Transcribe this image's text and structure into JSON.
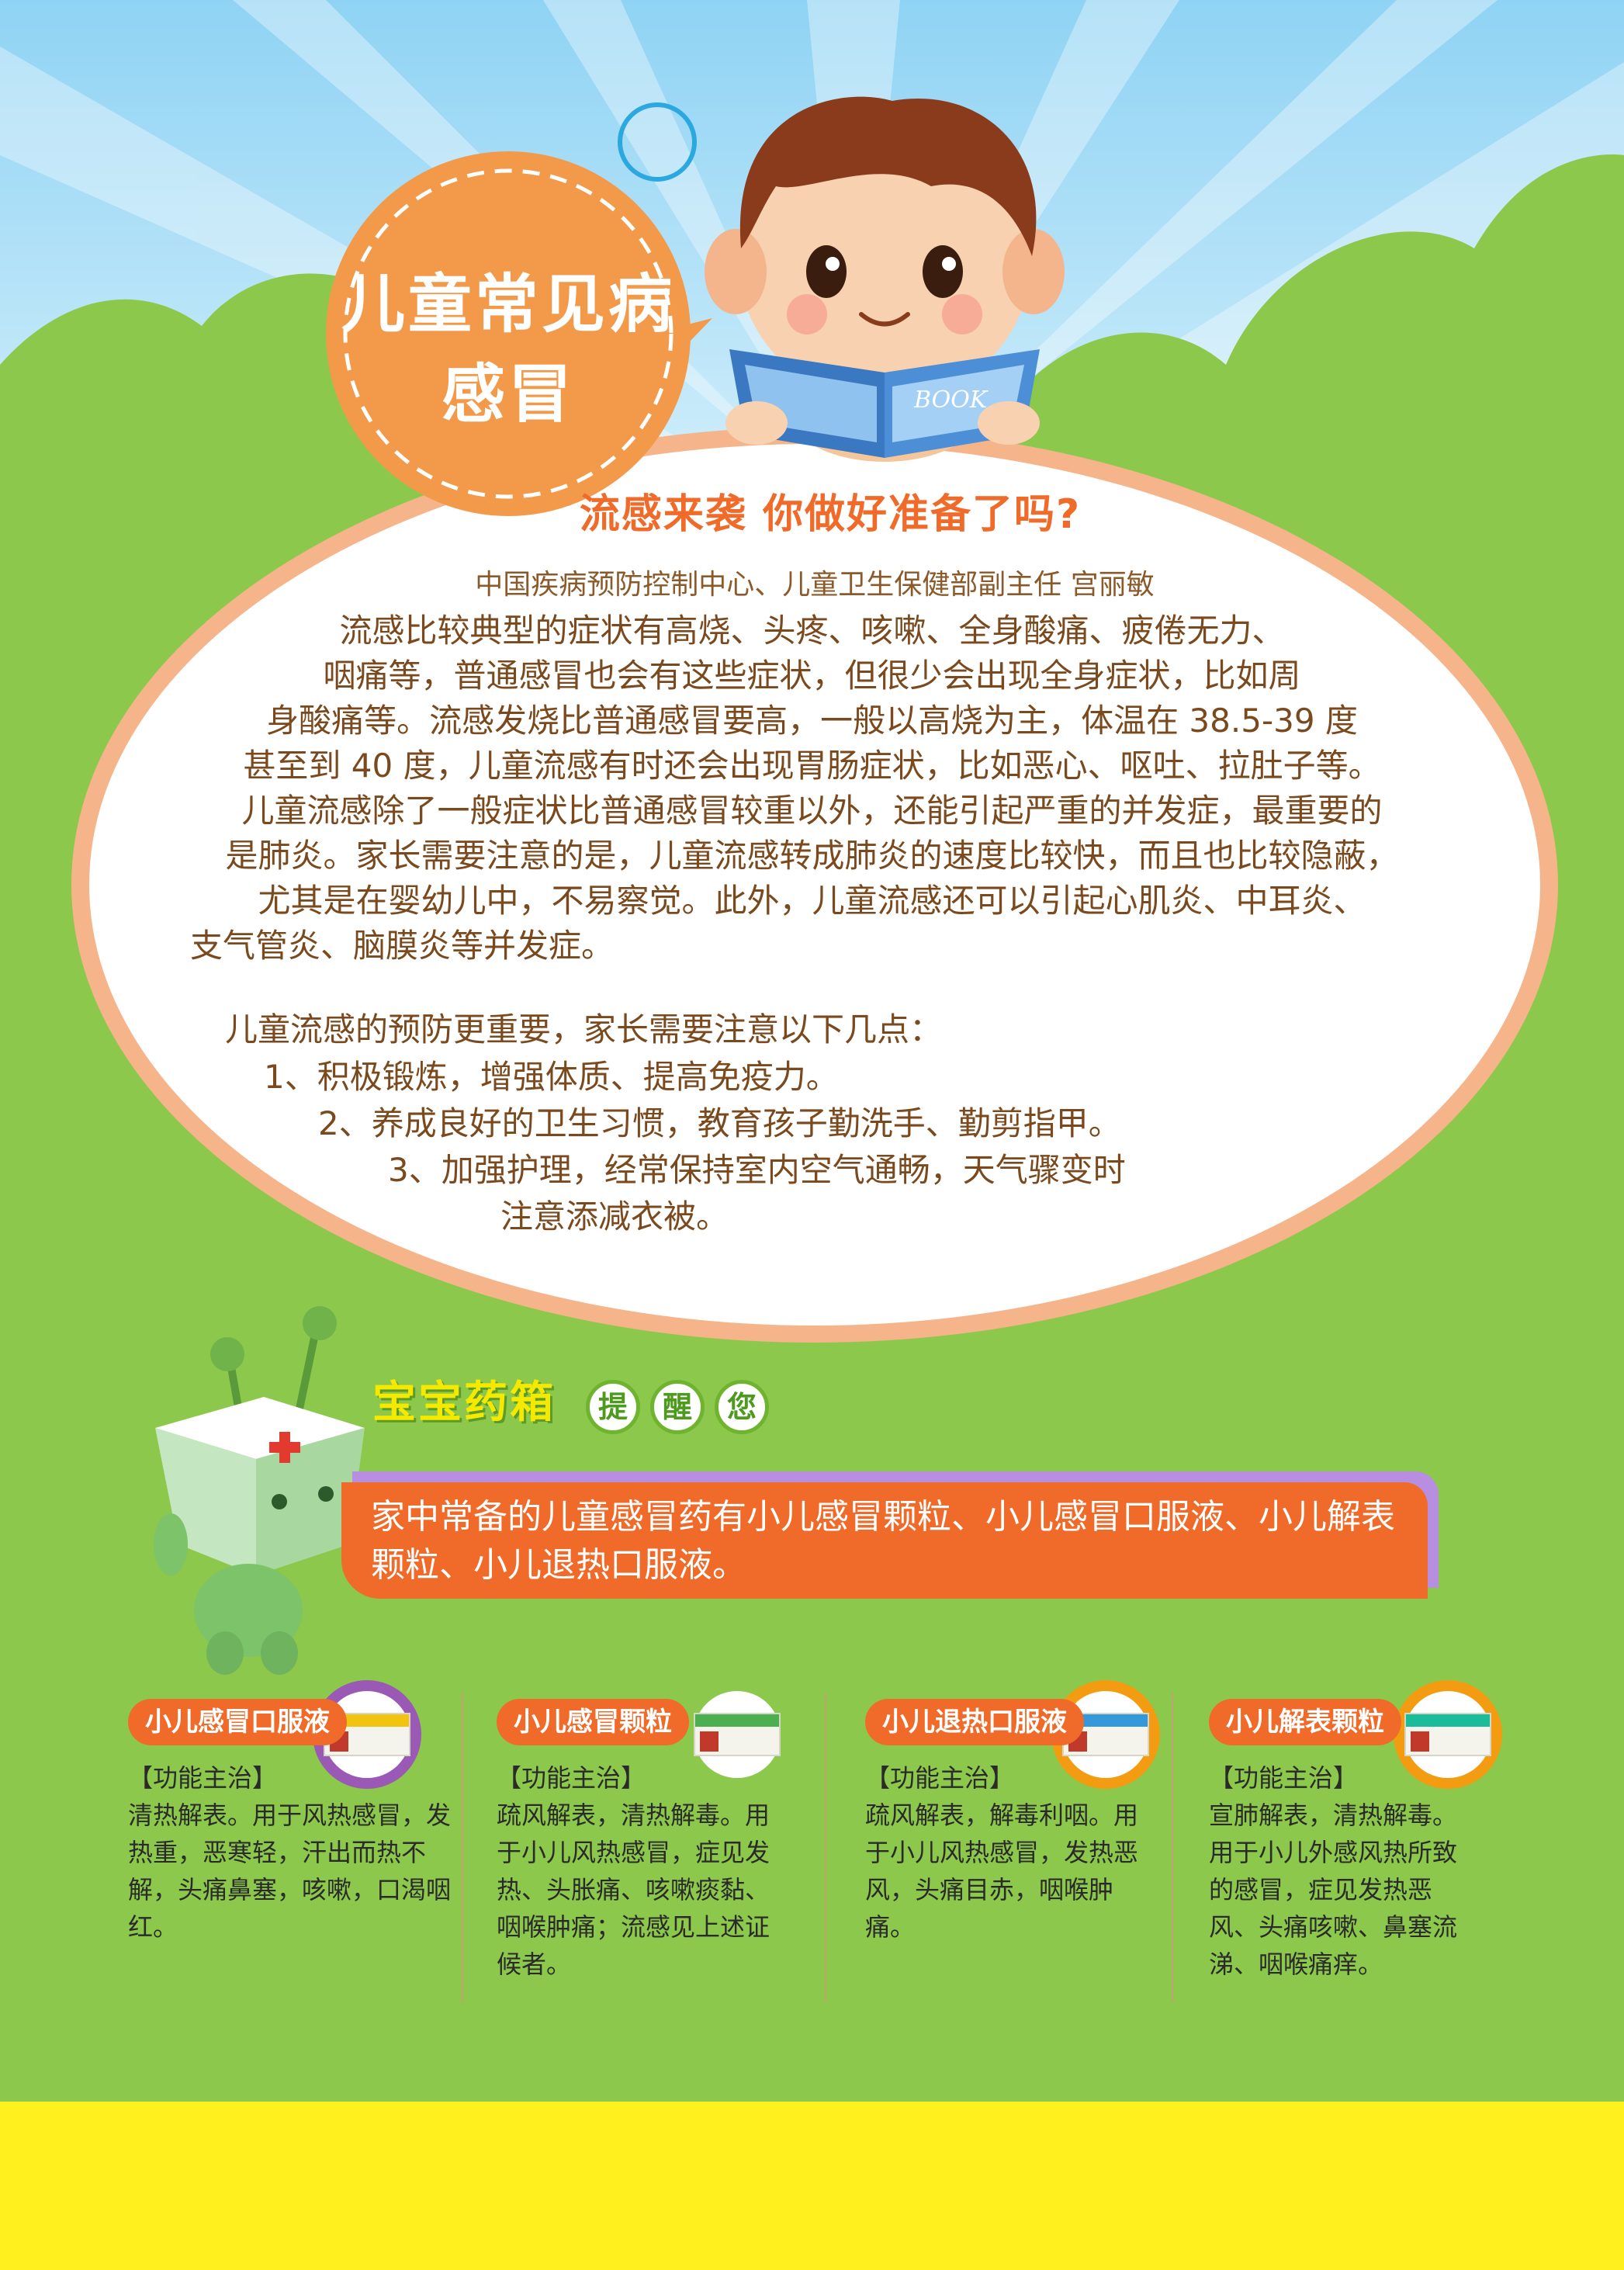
{
  "badge": {
    "line1": "儿童常见病",
    "line2": "感冒"
  },
  "book_label": "BOOK",
  "headline": "流感来袭  你做好准备了吗?",
  "author": "中国疾病预防控制中心、儿童卫生保健部副主任 宫丽敏",
  "paragraph1": [
    "流感比较典型的症状有高烧、头疼、咳嗽、全身酸痛、疲倦无力、",
    "咽痛等，普通感冒也会有这些症状，但很少会出现全身症状，比如周",
    "身酸痛等。流感发烧比普通感冒要高，一般以高烧为主，体温在 38.5-39 度",
    "甚至到 40 度，儿童流感有时还会出现胃肠症状，比如恶心、呕吐、拉肚子等。"
  ],
  "paragraph2": [
    "儿童流感除了一般症状比普通感冒较重以外，还能引起严重的并发症，最重要的",
    "是肺炎。家长需要注意的是，儿童流感转成肺炎的速度比较快，而且也比较隐蔽，",
    "尤其是在婴幼儿中，不易察觉。此外，儿童流感还可以引起心肌炎、中耳炎、",
    "支气管炎、脑膜炎等并发症。"
  ],
  "prevention_intro": "儿童流感的预防更重要，家长需要注意以下几点：",
  "prevention": [
    "1、积极锻炼，增强体质、提高免疫力。",
    "2、养成良好的卫生习惯，教育孩子勤洗手、勤剪指甲。",
    "3、加强护理，经常保持室内空气通畅，天气骤变时",
    "注意添减衣被。"
  ],
  "medicine_box_title": "宝宝药箱",
  "remind": [
    "提",
    "醒",
    "您"
  ],
  "reminder_text": "家中常备的儿童感冒药有小儿感冒颗粒、小儿感冒口服液、小儿解表颗粒、小儿退热口服液。",
  "medicines": [
    {
      "name": "小儿感冒口服液",
      "function_label": "【功能主治】",
      "description": "清热解表。用于风热感冒，发热重，恶寒轻，汗出而热不解，头痛鼻塞，咳嗽，口渴咽红。",
      "ring_color": "#9b59b6",
      "box_color": "#f1c40f"
    },
    {
      "name": "小儿感冒颗粒",
      "function_label": "【功能主治】",
      "description": "疏风解表，清热解毒。用于小儿风热感冒，症见发热、头胀痛、咳嗽痰黏、咽喉肿痛；流感见上述证候者。",
      "ring_color": "#8cc84b",
      "box_color": "#4caf50"
    },
    {
      "name": "小儿退热口服液",
      "function_label": "【功能主治】",
      "description": "疏风解表，解毒利咽。用于小儿风热感冒，发热恶风，头痛目赤，咽喉肿痛。",
      "ring_color": "#f39c12",
      "box_color": "#3498db"
    },
    {
      "name": "小儿解表颗粒",
      "function_label": "【功能主治】",
      "description": "宣肺解表，清热解毒。用于小儿外感风热所致的感冒，症见发热恶风、头痛咳嗽、鼻塞流涕、咽喉痛痒。",
      "ring_color": "#f39c12",
      "box_color": "#1abc9c"
    }
  ]
}
